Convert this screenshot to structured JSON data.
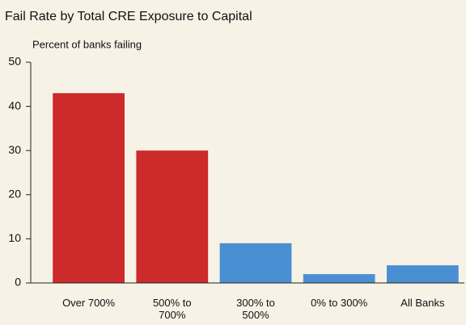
{
  "chart_data": {
    "type": "bar",
    "title": "Fail Rate by Total CRE Exposure to Capital",
    "y_label": "Percent of banks failing",
    "categories": [
      "Over 700%",
      "500% to 700%",
      "300% to 500%",
      "0% to 300%",
      "All Banks"
    ],
    "values": [
      43,
      30,
      9,
      2,
      4
    ],
    "colors": [
      "#cd2a2b",
      "#cd2a2b",
      "#4a8fd2",
      "#4a8fd2",
      "#4a8fd2"
    ],
    "ylim": [
      0,
      50
    ],
    "yticks": [
      0,
      10,
      20,
      30,
      40,
      50
    ],
    "grid": false
  }
}
